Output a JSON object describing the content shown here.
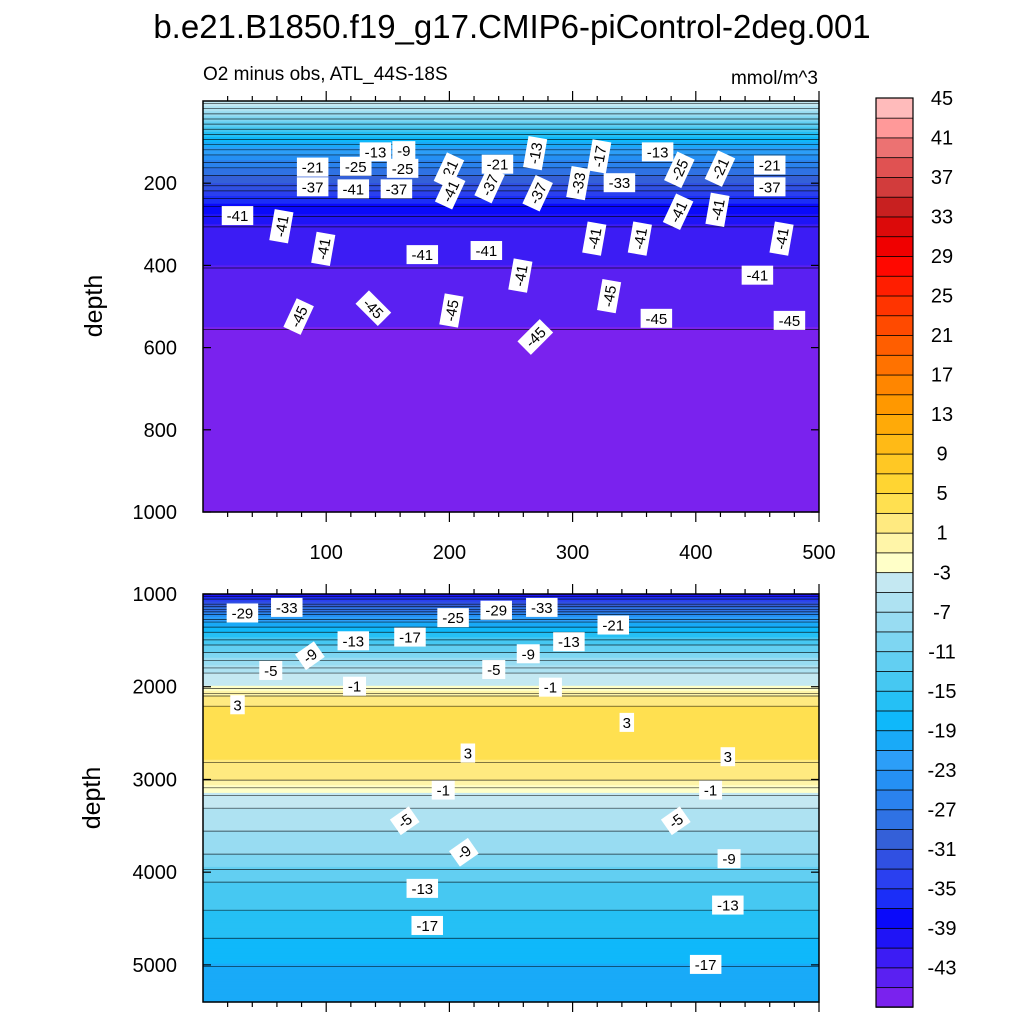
{
  "title": "b.e21.B1850.f19_g17.CMIP6-piControl-2deg.001",
  "chart_data": {
    "type": "contour",
    "variable_label": "O2 minus obs, ATL_44S-18S",
    "units": "mmol/m^3",
    "x_range": [
      0,
      500
    ],
    "x_ticks": [
      "100",
      "200",
      "300",
      "400",
      "500"
    ],
    "colorbar": {
      "levels": [
        -45,
        -43,
        -41,
        -39,
        -37,
        -35,
        -33,
        -31,
        -29,
        -27,
        -25,
        -23,
        -21,
        -19,
        -17,
        -15,
        -13,
        -11,
        -9,
        -7,
        -5,
        -3,
        -1,
        1,
        3,
        5,
        7,
        9,
        11,
        13,
        15,
        17,
        19,
        21,
        23,
        25,
        27,
        29,
        31,
        33,
        35,
        37,
        39,
        41,
        43,
        45
      ],
      "tick_labels": [
        "45",
        "41",
        "37",
        "33",
        "29",
        "25",
        "21",
        "17",
        "13",
        "9",
        "5",
        "1",
        "-3",
        "-7",
        "-11",
        "-15",
        "-19",
        "-23",
        "-27",
        "-31",
        "-35",
        "-39",
        "-43"
      ],
      "colors": [
        "#7a22ee",
        "#5a20f2",
        "#3c1cf4",
        "#1f14f6",
        "#0a0afa",
        "#1b2ef8",
        "#2a40f0",
        "#3050e2",
        "#3460d8",
        "#2f72e4",
        "#2a82ee",
        "#2590f4",
        "#2c9ef8",
        "#19aaf8",
        "#0fb8fa",
        "#25c0f5",
        "#46c8f2",
        "#62cff2",
        "#7ed6f2",
        "#98dcf2",
        "#aee2f2",
        "#c4e8f2",
        "#ffffc8",
        "#fff5a8",
        "#ffea80",
        "#ffe050",
        "#ffd532",
        "#ffc824",
        "#ffba16",
        "#ffaa08",
        "#ff9800",
        "#ff8600",
        "#ff7200",
        "#ff5e00",
        "#ff4a00",
        "#ff3400",
        "#ff1e00",
        "#ff0800",
        "#f00000",
        "#dc0a0a",
        "#c82020",
        "#d23c3c",
        "#e05252",
        "#ec7272",
        "#ff9999",
        "#ffbbbb"
      ]
    },
    "panels": [
      {
        "name": "upper",
        "ylabel": "depth",
        "y_range": [
          0,
          1000
        ],
        "y_ticks": [
          "200",
          "400",
          "600",
          "800",
          "1000"
        ],
        "depth_values": [
          0,
          25,
          50,
          75,
          100,
          130,
          160,
          200,
          250,
          300,
          350,
          400,
          450,
          500,
          550,
          600,
          800,
          1000
        ],
        "profile_values": [
          -3,
          -7,
          -11,
          -15,
          -19,
          -23,
          -27,
          -31,
          -37,
          -41,
          -42,
          -43,
          -44,
          -45,
          -45,
          -46,
          -46,
          -46
        ],
        "contour_labels": [
          {
            "text": "-13",
            "x": 140,
            "z": 125,
            "rot": 0
          },
          {
            "text": "-9",
            "x": 163,
            "z": 122,
            "rot": 0
          },
          {
            "text": "-13",
            "x": 270,
            "z": 127,
            "rot": -80
          },
          {
            "text": "-17",
            "x": 322,
            "z": 135,
            "rot": -80
          },
          {
            "text": "-13",
            "x": 369,
            "z": 125,
            "rot": 0
          },
          {
            "text": "-21",
            "x": 89,
            "z": 162,
            "rot": 0
          },
          {
            "text": "-25",
            "x": 124,
            "z": 160,
            "rot": 0
          },
          {
            "text": "-25",
            "x": 162,
            "z": 165,
            "rot": 0
          },
          {
            "text": "-21",
            "x": 200,
            "z": 170,
            "rot": -65
          },
          {
            "text": "-21",
            "x": 239,
            "z": 155,
            "rot": 0
          },
          {
            "text": "-25",
            "x": 387,
            "z": 168,
            "rot": -65
          },
          {
            "text": "-21",
            "x": 420,
            "z": 165,
            "rot": -65
          },
          {
            "text": "-21",
            "x": 460,
            "z": 157,
            "rot": 0
          },
          {
            "text": "-37",
            "x": 89,
            "z": 210,
            "rot": 0
          },
          {
            "text": "-41",
            "x": 122,
            "z": 215,
            "rot": 0
          },
          {
            "text": "-37",
            "x": 157,
            "z": 215,
            "rot": 0
          },
          {
            "text": "-41",
            "x": 201,
            "z": 220,
            "rot": -65
          },
          {
            "text": "-37",
            "x": 233,
            "z": 205,
            "rot": -65
          },
          {
            "text": "-37",
            "x": 272,
            "z": 225,
            "rot": -65
          },
          {
            "text": "-33",
            "x": 305,
            "z": 200,
            "rot": -80
          },
          {
            "text": "-33",
            "x": 338,
            "z": 200,
            "rot": 0
          },
          {
            "text": "-41",
            "x": 386,
            "z": 270,
            "rot": -65
          },
          {
            "text": "-41",
            "x": 418,
            "z": 265,
            "rot": -80
          },
          {
            "text": "-37",
            "x": 460,
            "z": 210,
            "rot": 0
          },
          {
            "text": "-41",
            "x": 28,
            "z": 280,
            "rot": 0
          },
          {
            "text": "-41",
            "x": 64,
            "z": 305,
            "rot": -80
          },
          {
            "text": "-41",
            "x": 98,
            "z": 360,
            "rot": -80
          },
          {
            "text": "-41",
            "x": 178,
            "z": 375,
            "rot": 0
          },
          {
            "text": "-41",
            "x": 230,
            "z": 365,
            "rot": 0
          },
          {
            "text": "-41",
            "x": 318,
            "z": 335,
            "rot": -80
          },
          {
            "text": "-41",
            "x": 355,
            "z": 335,
            "rot": -80
          },
          {
            "text": "-41",
            "x": 470,
            "z": 335,
            "rot": -80
          },
          {
            "text": "-41",
            "x": 450,
            "z": 425,
            "rot": 0
          },
          {
            "text": "-41",
            "x": 258,
            "z": 425,
            "rot": -80
          },
          {
            "text": "-45",
            "x": 78,
            "z": 525,
            "rot": -65
          },
          {
            "text": "-45",
            "x": 138,
            "z": 505,
            "rot": 45
          },
          {
            "text": "-45",
            "x": 202,
            "z": 510,
            "rot": -80
          },
          {
            "text": "-45",
            "x": 270,
            "z": 575,
            "rot": -45
          },
          {
            "text": "-45",
            "x": 330,
            "z": 475,
            "rot": -80
          },
          {
            "text": "-45",
            "x": 368,
            "z": 530,
            "rot": 0
          },
          {
            "text": "-45",
            "x": 476,
            "z": 535,
            "rot": 0
          }
        ]
      },
      {
        "name": "lower",
        "ylabel": "depth",
        "y_range": [
          1000,
          5400
        ],
        "y_ticks": [
          "1000",
          "2000",
          "3000",
          "4000",
          "5000"
        ],
        "depth_values": [
          1000,
          1050,
          1150,
          1250,
          1400,
          1550,
          1700,
          1850,
          2000,
          2100,
          2200,
          2500,
          2800,
          3000,
          3150,
          3300,
          3550,
          3800,
          4100,
          4400,
          4700,
          5000,
          5400
        ],
        "profile_values": [
          -41,
          -35,
          -29,
          -23,
          -17,
          -13,
          -9,
          -5,
          -3,
          1,
          3,
          5,
          3,
          1,
          -3,
          -5,
          -7,
          -9,
          -13,
          -15,
          -17,
          -19,
          -21
        ],
        "contour_labels": [
          {
            "text": "-29",
            "x": 32,
            "z": 1210,
            "rot": 0
          },
          {
            "text": "-33",
            "x": 68,
            "z": 1150,
            "rot": 0
          },
          {
            "text": "-25",
            "x": 203,
            "z": 1260,
            "rot": 0
          },
          {
            "text": "-29",
            "x": 238,
            "z": 1180,
            "rot": 0
          },
          {
            "text": "-33",
            "x": 275,
            "z": 1150,
            "rot": 0
          },
          {
            "text": "-21",
            "x": 333,
            "z": 1340,
            "rot": 0
          },
          {
            "text": "-13",
            "x": 122,
            "z": 1510,
            "rot": 0
          },
          {
            "text": "-17",
            "x": 168,
            "z": 1470,
            "rot": 0
          },
          {
            "text": "-13",
            "x": 297,
            "z": 1520,
            "rot": 0
          },
          {
            "text": "-9",
            "x": 87,
            "z": 1670,
            "rot": -35
          },
          {
            "text": "-9",
            "x": 264,
            "z": 1650,
            "rot": 0
          },
          {
            "text": "-5",
            "x": 55,
            "z": 1830,
            "rot": 0
          },
          {
            "text": "-5",
            "x": 236,
            "z": 1820,
            "rot": 0
          },
          {
            "text": "-1",
            "x": 123,
            "z": 2000,
            "rot": 0
          },
          {
            "text": "-1",
            "x": 282,
            "z": 2010,
            "rot": 0
          },
          {
            "text": "3",
            "x": 28,
            "z": 2200,
            "rot": 0
          },
          {
            "text": "3",
            "x": 344,
            "z": 2390,
            "rot": 0
          },
          {
            "text": "3",
            "x": 215,
            "z": 2720,
            "rot": 0
          },
          {
            "text": "3",
            "x": 426,
            "z": 2760,
            "rot": 0
          },
          {
            "text": "-1",
            "x": 195,
            "z": 3120,
            "rot": 0
          },
          {
            "text": "-1",
            "x": 412,
            "z": 3120,
            "rot": 0
          },
          {
            "text": "-5",
            "x": 164,
            "z": 3450,
            "rot": -35
          },
          {
            "text": "-5",
            "x": 384,
            "z": 3450,
            "rot": -35
          },
          {
            "text": "-9",
            "x": 212,
            "z": 3790,
            "rot": -35
          },
          {
            "text": "-9",
            "x": 427,
            "z": 3860,
            "rot": 0
          },
          {
            "text": "-13",
            "x": 178,
            "z": 4180,
            "rot": 0
          },
          {
            "text": "-13",
            "x": 426,
            "z": 4360,
            "rot": 0
          },
          {
            "text": "-17",
            "x": 182,
            "z": 4580,
            "rot": 0
          },
          {
            "text": "-17",
            "x": 408,
            "z": 5000,
            "rot": 0
          }
        ]
      }
    ]
  }
}
